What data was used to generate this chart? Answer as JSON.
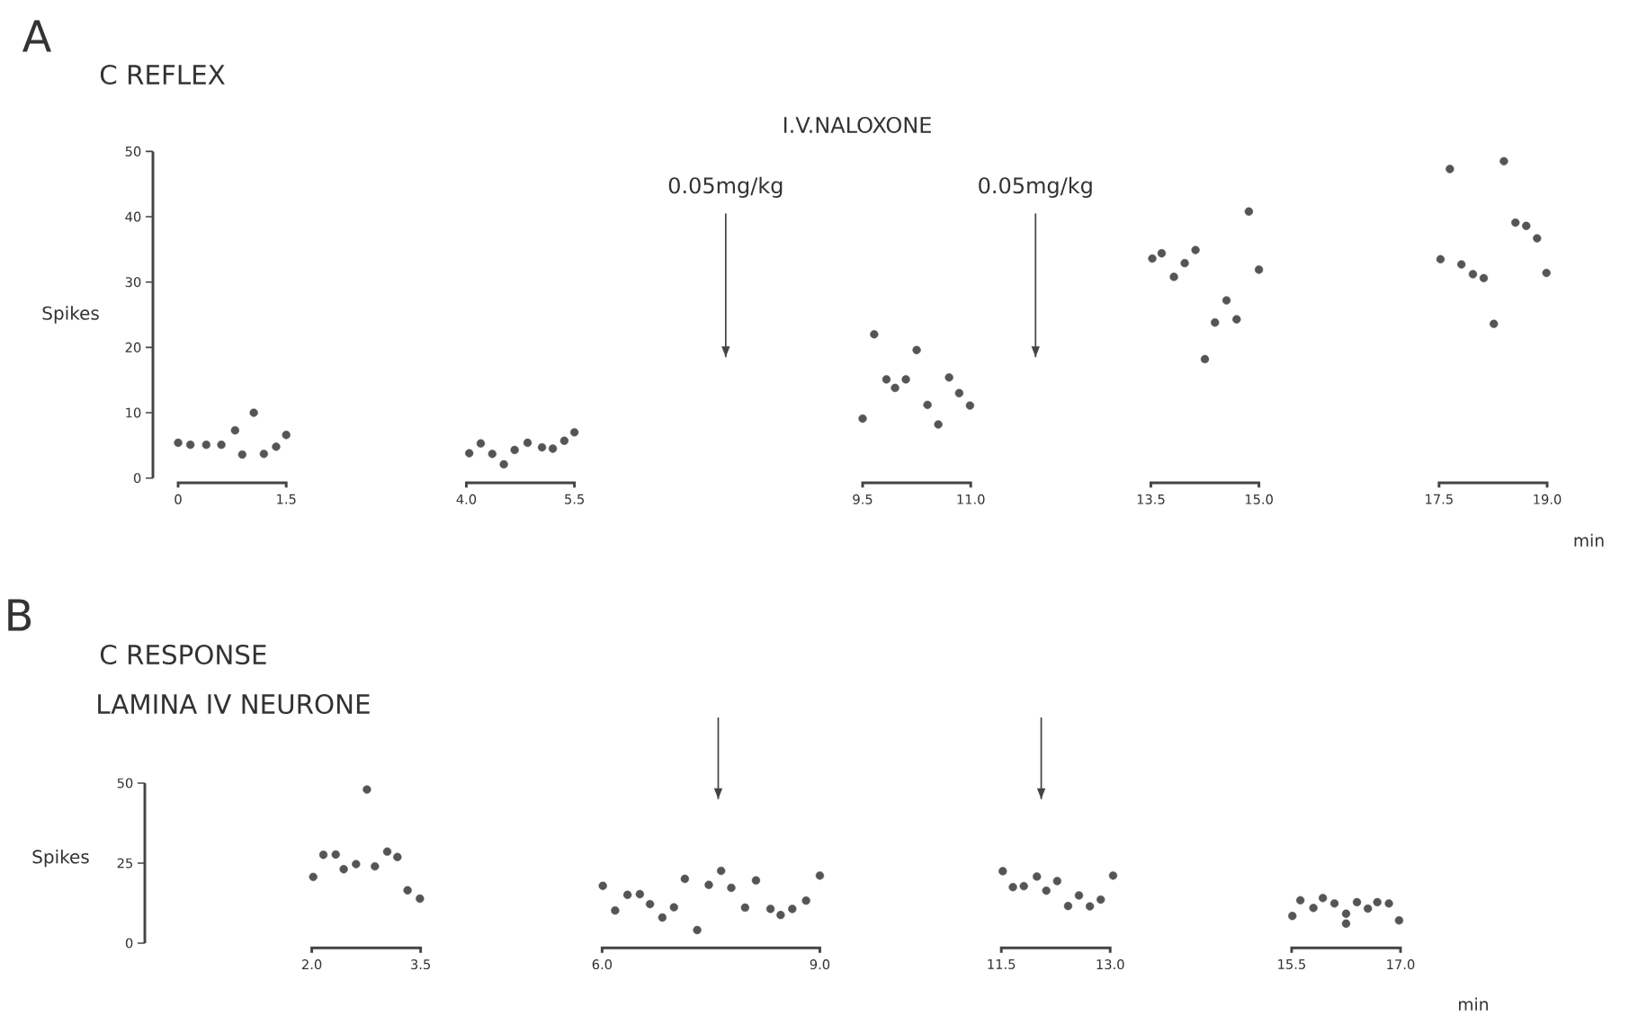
{
  "chart_data": [
    {
      "type": "scatter",
      "title": "C REFLEX",
      "xlabel": "min",
      "ylabel": "Spikes",
      "color": "#555555",
      "annotations": [
        "A",
        "I.V.NALOXONE"
      ],
      "x": [
        0,
        0.17,
        0.39,
        0.6,
        0.79,
        0.89,
        1.05,
        1.19,
        1.36,
        1.5,
        4.04,
        4.2,
        4.36,
        4.52,
        4.67,
        4.85,
        5.05,
        5.2,
        5.36,
        5.5,
        9.5,
        9.66,
        9.83,
        9.95,
        10.1,
        10.25,
        10.4,
        10.55,
        10.7,
        10.84,
        10.99,
        13.52,
        13.65,
        13.82,
        13.97,
        14.12,
        14.25,
        14.39,
        14.55,
        14.69,
        14.86,
        15.0,
        17.52,
        17.65,
        17.81,
        17.97,
        18.12,
        18.26,
        18.4,
        18.56,
        18.71,
        18.86,
        18.99
      ],
      "values": [
        5.4,
        5.1,
        5.1,
        5.1,
        7.3,
        3.6,
        10.0,
        3.7,
        4.8,
        6.6,
        3.8,
        5.3,
        3.7,
        2.1,
        4.3,
        5.4,
        4.7,
        4.5,
        5.7,
        7.0,
        9.1,
        22.0,
        15.1,
        13.8,
        15.1,
        19.6,
        11.2,
        8.2,
        15.4,
        13.0,
        11.1,
        33.6,
        34.4,
        30.8,
        32.9,
        34.9,
        18.2,
        23.8,
        27.2,
        24.3,
        40.8,
        31.9,
        33.5,
        47.3,
        32.7,
        31.2,
        30.6,
        23.6,
        48.5,
        39.1,
        38.6,
        36.7,
        31.4
      ],
      "xlim": [
        -0.35,
        19
      ],
      "ylim": [
        0,
        50
      ],
      "xticks": [
        0,
        1.5,
        {
          "value": 4,
          "label": "4.0"
        },
        5.5,
        9.5,
        {
          "value": 11,
          "label": "11.0"
        },
        13.5,
        {
          "value": 15,
          "label": "15.0"
        },
        17.5,
        {
          "value": 19,
          "label": "19.0"
        }
      ],
      "yticks": [
        0,
        10,
        20,
        30,
        40,
        50
      ],
      "ref_lines": [
        {
          "axis": "x",
          "value": 7.6,
          "label": "0.05mg/kg"
        },
        {
          "axis": "x",
          "value": 11.9,
          "label": "0.05mg/kg"
        }
      ]
    },
    {
      "type": "scatter",
      "title": "C RESPONSE",
      "subtitle": "LAMINA IV NEURONE",
      "xlabel": "min",
      "ylabel": "Spikes",
      "color": "#555555",
      "annotations": [
        "B"
      ],
      "x": [
        2.02,
        2.16,
        2.33,
        2.44,
        2.61,
        2.76,
        2.87,
        3.04,
        3.18,
        3.32,
        3.49,
        6.01,
        6.18,
        6.35,
        6.52,
        6.66,
        6.83,
        6.99,
        7.14,
        7.31,
        7.47,
        7.64,
        7.78,
        7.97,
        8.12,
        8.32,
        8.46,
        8.62,
        8.81,
        9.0,
        11.52,
        11.66,
        11.81,
        11.99,
        12.12,
        12.27,
        12.42,
        12.57,
        12.72,
        12.87,
        13.04,
        15.51,
        15.62,
        15.8,
        15.93,
        16.09,
        16.25,
        16.25,
        16.4,
        16.55,
        16.68,
        16.84,
        16.98
      ],
      "values": [
        20.7,
        27.6,
        27.7,
        23.1,
        24.7,
        48.0,
        24.0,
        28.6,
        26.9,
        16.5,
        13.9,
        17.9,
        10.2,
        15.1,
        15.3,
        12.2,
        8.0,
        11.2,
        20.1,
        4.1,
        18.2,
        22.6,
        17.3,
        11.1,
        19.6,
        10.7,
        8.8,
        10.7,
        13.3,
        21.1,
        22.5,
        17.5,
        17.8,
        20.8,
        16.4,
        19.4,
        11.6,
        14.9,
        11.5,
        13.6,
        21.1,
        8.5,
        13.4,
        11.0,
        14.1,
        12.4,
        9.2,
        6.1,
        12.8,
        10.8,
        12.8,
        12.4,
        7.1
      ],
      "xlim": [
        -0.3,
        17
      ],
      "ylim": [
        0,
        50
      ],
      "xticks": [
        {
          "value": 2,
          "label": "2.0"
        },
        3.5,
        {
          "value": 6,
          "label": "6.0"
        },
        {
          "value": 9,
          "label": "9.0"
        },
        11.5,
        {
          "value": 13,
          "label": "13.0"
        },
        15.5,
        {
          "value": 17,
          "label": "17.0"
        }
      ],
      "yticks": [
        0,
        25,
        50
      ],
      "ref_lines": [
        {
          "axis": "x",
          "value": 7.6
        },
        {
          "axis": "x",
          "value": 12.05
        }
      ]
    }
  ]
}
